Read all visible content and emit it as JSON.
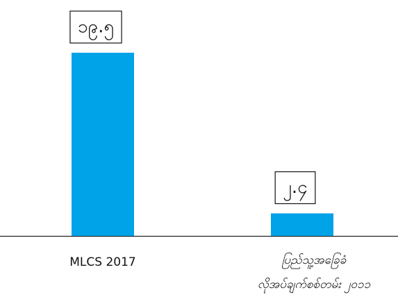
{
  "chart_data": {
    "type": "bar",
    "categories": [
      "MLCS 2017",
      "ပြည်သူ့အခြေခံ\nလိုအပ်ချက်စစ်တမ်း ၂၀၁၁"
    ],
    "values": [
      19.5,
      2.4
    ],
    "value_labels": [
      "၁၉.၅",
      "၂.၄"
    ],
    "color": "#00a2e8"
  }
}
